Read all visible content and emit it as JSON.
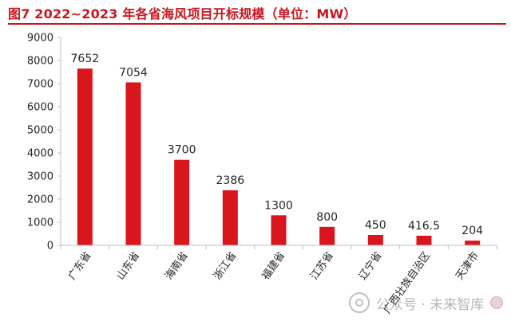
{
  "figure": {
    "title": "图7  2022~2023 年各省海风项目开标规模（单位：MW）"
  },
  "chart_data": {
    "type": "bar",
    "categories": [
      "广东省",
      "山东省",
      "海南省",
      "浙江省",
      "福建省",
      "江苏省",
      "辽宁省",
      "广西壮族自治区",
      "天津市"
    ],
    "values": [
      7652,
      7054,
      3700,
      2386,
      1300,
      800,
      450,
      416.5,
      204
    ],
    "data_labels": [
      "7652",
      "7054",
      "3700",
      "2386",
      "1300",
      "800",
      "450",
      "416.5",
      "204"
    ],
    "yticks": [
      0,
      1000,
      2000,
      3000,
      4000,
      5000,
      6000,
      7000,
      8000,
      9000
    ],
    "ylim": [
      0,
      9000
    ],
    "bar_color": "#d9161d",
    "grid": false,
    "legend": "none"
  },
  "watermark": {
    "text": "公众号 · 未来智库"
  },
  "colors": {
    "accent": "#c8161d",
    "axis": "#bfbfbf",
    "text": "#262626"
  }
}
